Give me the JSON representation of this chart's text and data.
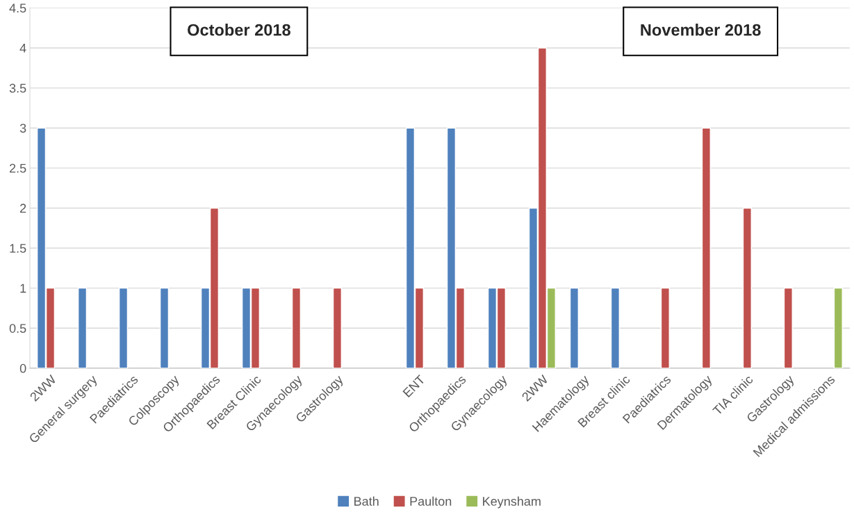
{
  "chart_data": {
    "type": "bar",
    "categories": [
      "2WW",
      "General surgery",
      "Paediatrics",
      "Colposcopy",
      "Orthopaedics",
      "Breast Clinic",
      "Gynaecology",
      "Gastrology",
      null,
      "ENT",
      "Orthopaedics",
      "Gynaecology",
      "2WW",
      "Haematology",
      "Breast clinic",
      "Paediatrics",
      "Dermatology",
      "TIA clinic",
      "Gastrology",
      "Medical admissions"
    ],
    "series": [
      {
        "name": "Bath",
        "color": "#4f81bd",
        "values": [
          3,
          1,
          1,
          1,
          1,
          1,
          null,
          null,
          null,
          3,
          3,
          1,
          2,
          1,
          1,
          null,
          null,
          null,
          null,
          null
        ]
      },
      {
        "name": "Paulton",
        "color": "#c0504d",
        "values": [
          1,
          null,
          null,
          null,
          2,
          1,
          1,
          1,
          null,
          1,
          1,
          1,
          4,
          null,
          null,
          1,
          3,
          2,
          1,
          null
        ]
      },
      {
        "name": "Keynsham",
        "color": "#9bbb59",
        "values": [
          null,
          null,
          null,
          null,
          null,
          null,
          null,
          null,
          null,
          null,
          null,
          null,
          1,
          null,
          null,
          null,
          null,
          null,
          null,
          1
        ]
      }
    ],
    "ylim": [
      0,
      4.5
    ],
    "yticks": [
      0,
      0.5,
      1,
      1.5,
      2,
      2.5,
      3,
      3.5,
      4,
      4.5
    ],
    "grid": "y",
    "legend": "bottom",
    "annotations": [
      "October 2018",
      "November 2018"
    ]
  }
}
